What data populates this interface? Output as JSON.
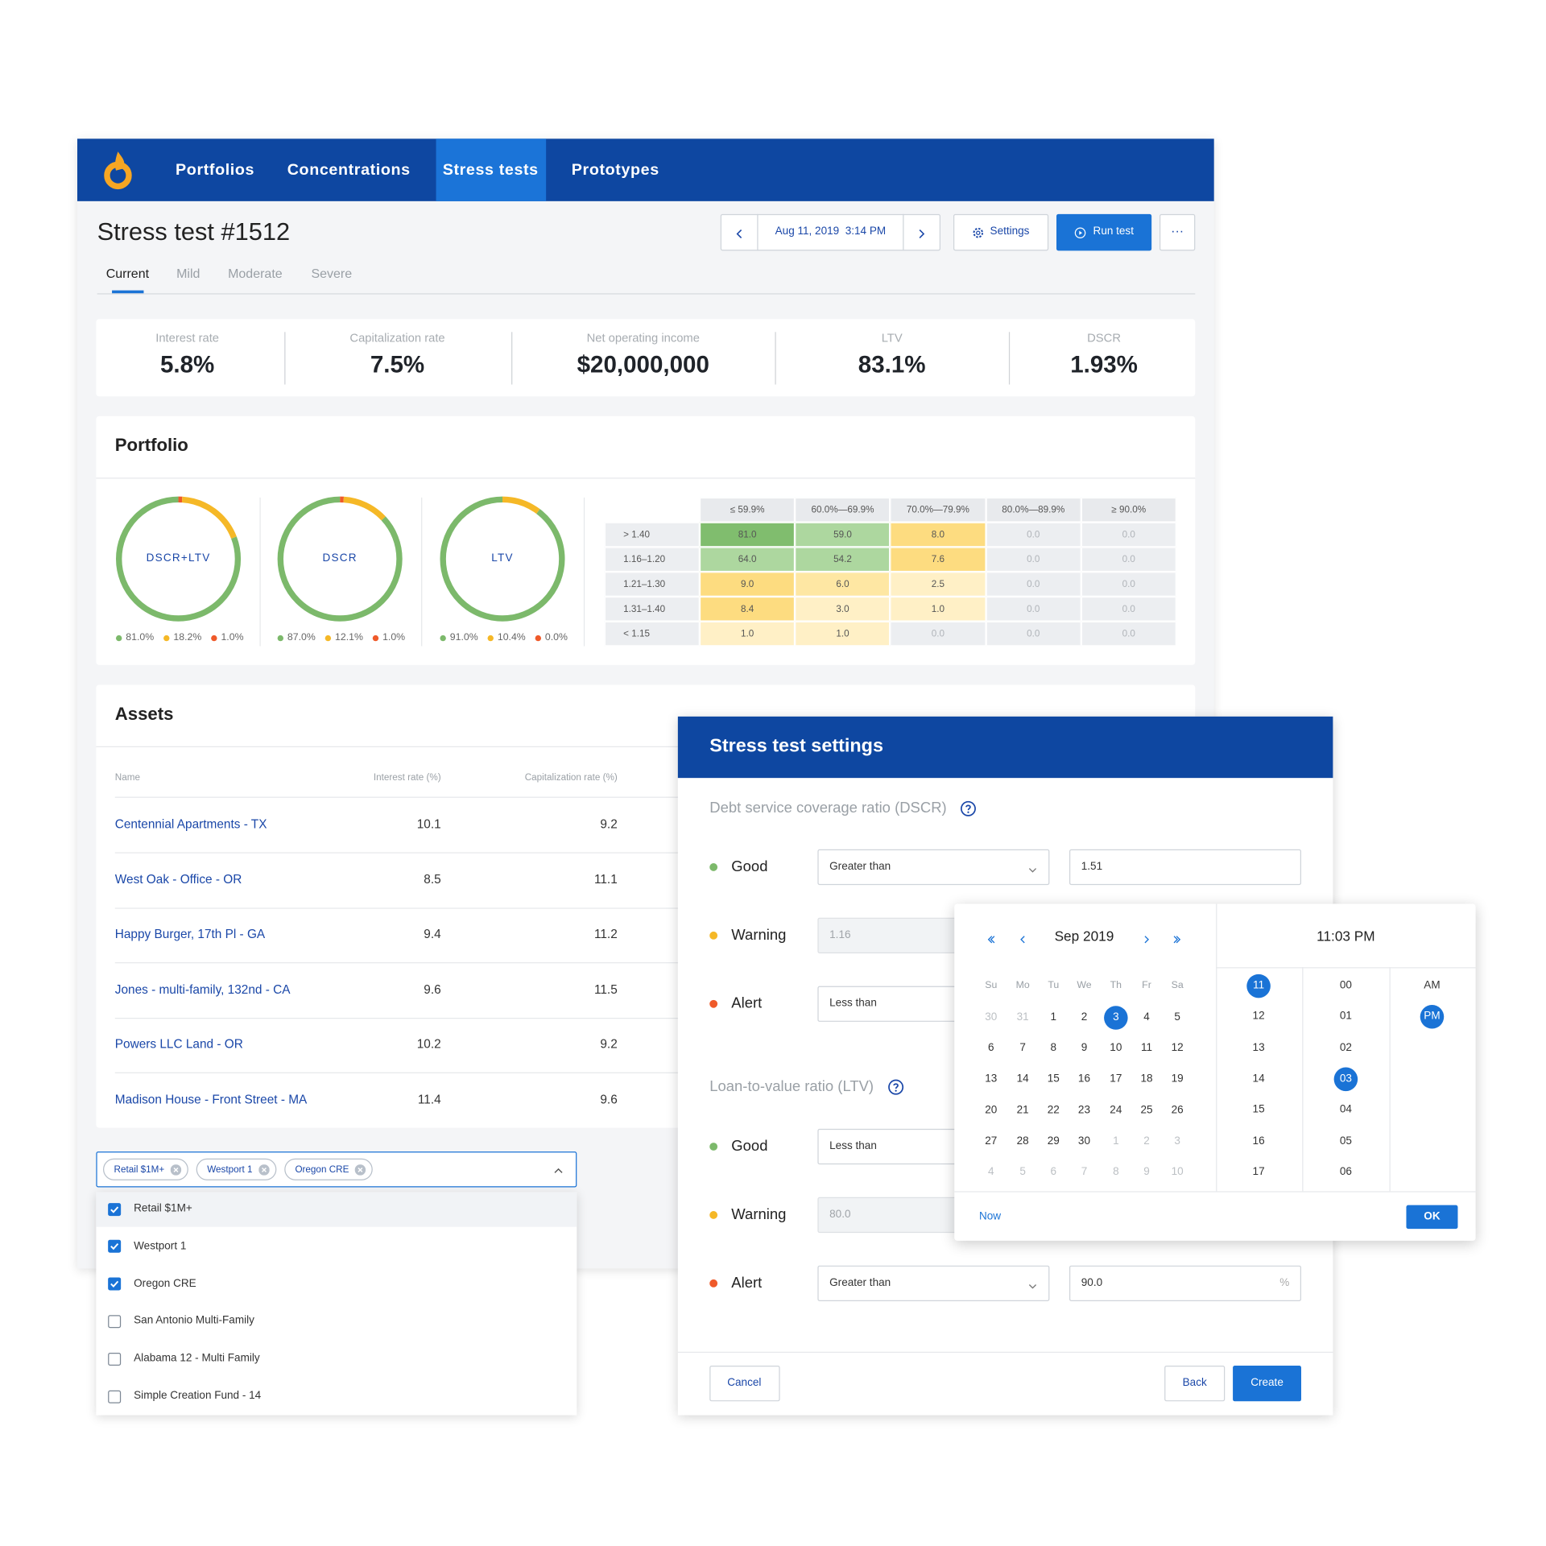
{
  "nav": {
    "items": [
      {
        "label": "Portfolios"
      },
      {
        "label": "Concentrations"
      },
      {
        "label": "Stress tests",
        "active": true
      },
      {
        "label": "Prototypes"
      }
    ]
  },
  "header": {
    "title": "Stress test #1512",
    "date": "Aug 11, 2019  3:14 PM",
    "settings": "Settings",
    "run": "Run test",
    "more": "···"
  },
  "tabs": [
    {
      "label": "Current",
      "active": true
    },
    {
      "label": "Mild"
    },
    {
      "label": "Moderate"
    },
    {
      "label": "Severe"
    }
  ],
  "stats": [
    {
      "label": "Interest rate",
      "value": "5.8%"
    },
    {
      "label": "Capitalization rate",
      "value": "7.5%"
    },
    {
      "label": "Net operating income",
      "value": "$20,000,000"
    },
    {
      "label": "LTV",
      "value": "83.1%"
    },
    {
      "label": "DSCR",
      "value": "1.93%"
    }
  ],
  "portfolio": {
    "title": "Portfolio",
    "colors": [
      "#7cb96b",
      "#f5b827",
      "#ef5a2a"
    ],
    "donuts": [
      {
        "label": "DSCR+LTV",
        "values": [
          81.0,
          18.2,
          1.0
        ],
        "value_labels": [
          "81.0%",
          "18.2%",
          "1.0%"
        ]
      },
      {
        "label": "DSCR",
        "values": [
          87.0,
          12.1,
          1.0
        ],
        "value_labels": [
          "87.0%",
          "12.1%",
          "1.0%"
        ]
      },
      {
        "label": "LTV",
        "values": [
          91.0,
          10.4,
          0.0
        ],
        "value_labels": [
          "91.0%",
          "10.4%",
          "0.0%"
        ]
      }
    ],
    "matrix": {
      "columns": [
        "≤ 59.9%",
        "60.0%—69.9%",
        "70.0%—79.9%",
        "80.0%—89.9%",
        "≥ 90.0%"
      ],
      "rows": [
        {
          "label": "> 1.40",
          "cells": [
            "81.0",
            "59.0",
            "8.0",
            "0.0",
            "0.0"
          ]
        },
        {
          "label": "1.16–1.20",
          "cells": [
            "64.0",
            "54.2",
            "7.6",
            "0.0",
            "0.0"
          ]
        },
        {
          "label": "1.21–1.30",
          "cells": [
            "9.0",
            "6.0",
            "2.5",
            "0.0",
            "0.0"
          ]
        },
        {
          "label": "1.31–1.40",
          "cells": [
            "8.4",
            "3.0",
            "1.0",
            "0.0",
            "0.0"
          ]
        },
        {
          "label": "< 1.15",
          "cells": [
            "1.0",
            "1.0",
            "0.0",
            "0.0",
            "0.0"
          ]
        }
      ]
    }
  },
  "assets": {
    "title": "Assets",
    "columns": [
      "Name",
      "Interest rate (%)",
      "Capitalization rate (%)"
    ],
    "rows": [
      [
        "Centennial Apartments - TX",
        "10.1",
        "9.2"
      ],
      [
        "West Oak - Office - OR",
        "8.5",
        "11.1"
      ],
      [
        "Happy Burger, 17th Pl - GA",
        "9.4",
        "11.2"
      ],
      [
        "Jones - multi-family, 132nd - CA",
        "9.6",
        "11.5"
      ],
      [
        "Powers LLC Land - OR",
        "10.2",
        "9.2"
      ],
      [
        "Madison House - Front Street - MA",
        "11.4",
        "9.6"
      ]
    ]
  },
  "filter": {
    "tags": [
      "Retail $1M+",
      "Westport 1",
      "Oregon CRE"
    ],
    "options": [
      {
        "label": "Retail $1M+",
        "checked": true
      },
      {
        "label": "Westport 1",
        "checked": true
      },
      {
        "label": "Oregon CRE",
        "checked": true
      },
      {
        "label": "San Antonio Multi-Family",
        "checked": false
      },
      {
        "label": "Alabama 12 - Multi Family",
        "checked": false
      },
      {
        "label": "Simple Creation Fund - 14",
        "checked": false
      }
    ]
  },
  "modal": {
    "title": "Stress test settings",
    "sections": [
      {
        "title": "Debt service coverage ratio (DSCR)",
        "rows": [
          {
            "label": "Good",
            "operator": "Greater than",
            "value": "1.51"
          },
          {
            "label": "Warning",
            "value": "1.16",
            "disabled": true
          },
          {
            "label": "Alert",
            "operator": "Less than"
          }
        ]
      },
      {
        "title": "Loan-to-value ratio (LTV)",
        "rows": [
          {
            "label": "Good",
            "operator": "Less than"
          },
          {
            "label": "Warning",
            "value": "80.0",
            "disabled": true
          },
          {
            "label": "Alert",
            "operator": "Greater than",
            "value": "90.0",
            "unit": "%"
          }
        ]
      }
    ],
    "cancel": "Cancel",
    "back": "Back",
    "create": "Create"
  },
  "picker": {
    "month": "Sep 2019",
    "time": "11:03 PM",
    "weekdays": [
      "Su",
      "Mo",
      "Tu",
      "We",
      "Th",
      "Fr",
      "Sa"
    ],
    "weeks": [
      [
        "30",
        "31",
        "1",
        "2",
        {
          "label": "3",
          "selected": true
        },
        "4",
        "5"
      ],
      [
        "6",
        "7",
        "8",
        "9",
        "10",
        "11",
        "12"
      ],
      [
        "13",
        "14",
        "15",
        "16",
        "17",
        "18",
        "19"
      ],
      [
        "20",
        "21",
        "22",
        "23",
        "24",
        "25",
        "26"
      ],
      [
        "27",
        "28",
        "29",
        "30",
        "1",
        "2",
        "3"
      ],
      [
        "4",
        "5",
        "6",
        "7",
        "8",
        "9",
        "10"
      ]
    ],
    "hours": [
      {
        "label": "11",
        "selected": true
      },
      {
        "label": "12"
      },
      {
        "label": "13"
      },
      {
        "label": "14"
      },
      {
        "label": "15"
      },
      {
        "label": "16"
      },
      {
        "label": "17"
      }
    ],
    "minutes": [
      {
        "label": "00"
      },
      {
        "label": "01"
      },
      {
        "label": "02"
      },
      {
        "label": "03",
        "selected": true
      },
      {
        "label": "04"
      },
      {
        "label": "05"
      },
      {
        "label": "06"
      }
    ],
    "periods": [
      {
        "label": "AM"
      },
      {
        "label": "PM",
        "selected": true
      }
    ],
    "now": "Now",
    "ok": "OK"
  }
}
